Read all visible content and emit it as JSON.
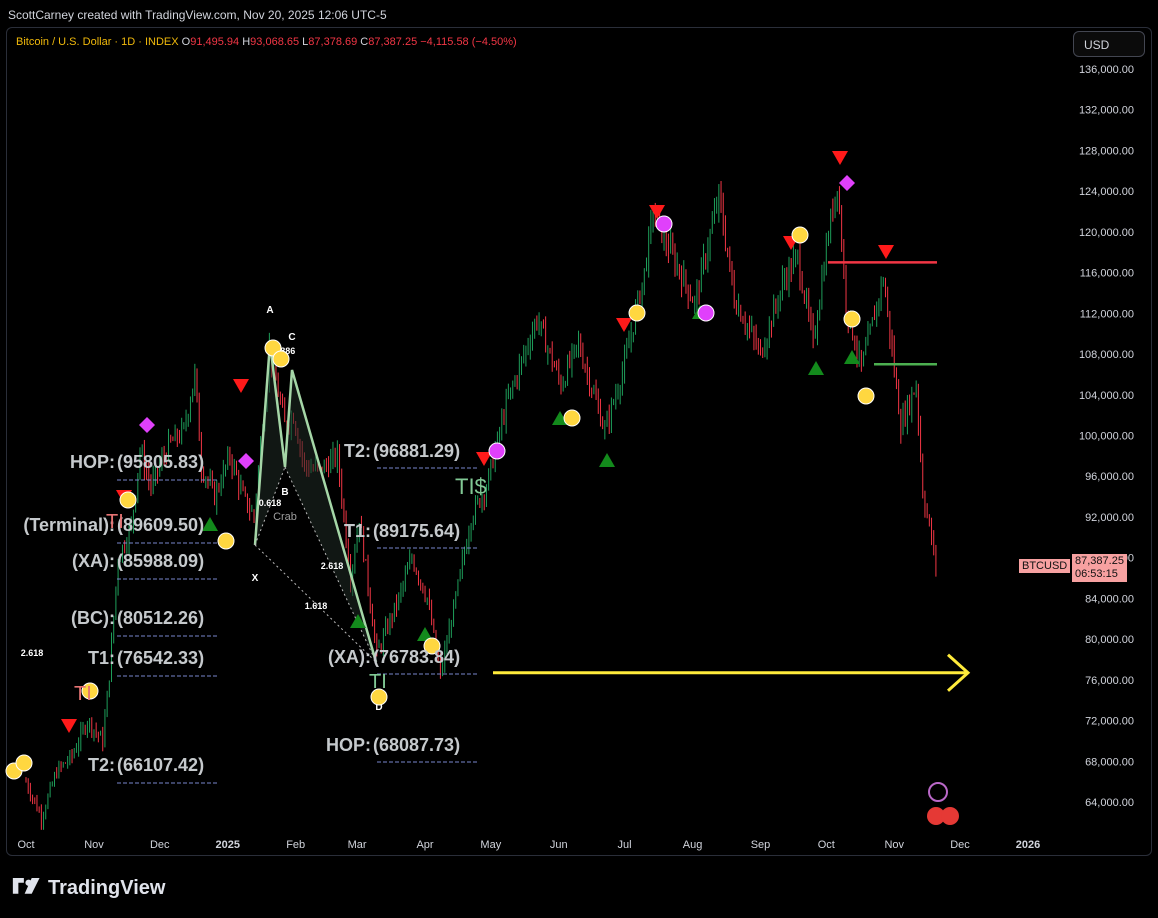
{
  "header": {
    "credit": "ScottCarney created with TradingView.com, Nov 20, 2025 12:06 UTC-5",
    "symbol": "Bitcoin / U.S. Dollar · 1D · INDEX",
    "o_label": "O",
    "o_value": "91,495.94",
    "h_label": "H",
    "h_value": "93,068.65",
    "l_label": "L",
    "l_value": "87,378.69",
    "c_label": "C",
    "c_value": "87,387.25",
    "change": "−4,115.58 (−4.50%)",
    "currency_button": "USD"
  },
  "price_tag": {
    "symbol": "BTCUSD",
    "price": "87,387.25",
    "countdown": "06:53:15"
  },
  "footer": {
    "brand": "TradingView"
  },
  "colors": {
    "up": "#1e9e5a",
    "down": "#f23645",
    "yellow": "#ffd740",
    "magenta": "#e040fb",
    "green_tri": "#138a1c",
    "red_tri": "#ff1a1a"
  },
  "chart_data": {
    "type": "candlestick",
    "title": "Bitcoin / U.S. Dollar · 1D · INDEX",
    "x_tick_labels": [
      "Oct",
      "Nov",
      "Dec",
      "2025",
      "Feb",
      "Mar",
      "Apr",
      "May",
      "Jun",
      "Jul",
      "Aug",
      "Sep",
      "Oct",
      "Nov",
      "Dec",
      "2026"
    ],
    "y_tick_labels": [
      "136,000.00",
      "132,000.00",
      "128,000.00",
      "124,000.00",
      "120,000.00",
      "116,000.00",
      "112,000.00",
      "108,000.00",
      "104,000.00",
      "100,000.00",
      "96,000.00",
      "92,000.00",
      "88,000.00",
      "84,000.00",
      "80,000.00",
      "76,000.00",
      "72,000.00",
      "68,000.00",
      "64,000.00"
    ],
    "ylim": [
      61500,
      138500
    ],
    "close_path": [
      {
        "x": "2024-10-01",
        "y": 66000
      },
      {
        "x": "2024-10-08",
        "y": 62500
      },
      {
        "x": "2024-10-15",
        "y": 67000
      },
      {
        "x": "2024-10-22",
        "y": 68500
      },
      {
        "x": "2024-10-29",
        "y": 72000
      },
      {
        "x": "2024-11-05",
        "y": 70000
      },
      {
        "x": "2024-11-08",
        "y": 76500
      },
      {
        "x": "2024-11-12",
        "y": 88000
      },
      {
        "x": "2024-11-18",
        "y": 91000
      },
      {
        "x": "2024-11-22",
        "y": 98500
      },
      {
        "x": "2024-11-27",
        "y": 95000
      },
      {
        "x": "2024-12-05",
        "y": 99000
      },
      {
        "x": "2024-12-12",
        "y": 100500
      },
      {
        "x": "2024-12-17",
        "y": 106000
      },
      {
        "x": "2024-12-20",
        "y": 97000
      },
      {
        "x": "2024-12-26",
        "y": 94000
      },
      {
        "x": "2025-01-02",
        "y": 98000
      },
      {
        "x": "2025-01-08",
        "y": 94000
      },
      {
        "x": "2025-01-13",
        "y": 92000
      },
      {
        "x": "2025-01-20",
        "y": 108500
      },
      {
        "x": "2025-01-27",
        "y": 101000
      },
      {
        "x": "2025-01-31",
        "y": 102000
      },
      {
        "x": "2025-02-05",
        "y": 97000
      },
      {
        "x": "2025-02-12",
        "y": 96500
      },
      {
        "x": "2025-02-20",
        "y": 98000
      },
      {
        "x": "2025-02-26",
        "y": 86000
      },
      {
        "x": "2025-03-02",
        "y": 92000
      },
      {
        "x": "2025-03-10",
        "y": 78500
      },
      {
        "x": "2025-03-20",
        "y": 84000
      },
      {
        "x": "2025-03-26",
        "y": 88000
      },
      {
        "x": "2025-04-02",
        "y": 84000
      },
      {
        "x": "2025-04-08",
        "y": 76500
      },
      {
        "x": "2025-04-15",
        "y": 84000
      },
      {
        "x": "2025-04-22",
        "y": 92000
      },
      {
        "x": "2025-04-29",
        "y": 95000
      },
      {
        "x": "2025-05-08",
        "y": 103000
      },
      {
        "x": "2025-05-22",
        "y": 111500
      },
      {
        "x": "2025-06-02",
        "y": 105000
      },
      {
        "x": "2025-06-10",
        "y": 109000
      },
      {
        "x": "2025-06-22",
        "y": 100500
      },
      {
        "x": "2025-07-01",
        "y": 107000
      },
      {
        "x": "2025-07-10",
        "y": 116000
      },
      {
        "x": "2025-07-14",
        "y": 122000
      },
      {
        "x": "2025-07-22",
        "y": 118000
      },
      {
        "x": "2025-08-02",
        "y": 113000
      },
      {
        "x": "2025-08-13",
        "y": 123500
      },
      {
        "x": "2025-08-20",
        "y": 113500
      },
      {
        "x": "2025-09-01",
        "y": 108000
      },
      {
        "x": "2025-09-12",
        "y": 115500
      },
      {
        "x": "2025-09-18",
        "y": 117500
      },
      {
        "x": "2025-09-25",
        "y": 109000
      },
      {
        "x": "2025-10-01",
        "y": 118500
      },
      {
        "x": "2025-10-06",
        "y": 125000
      },
      {
        "x": "2025-10-10",
        "y": 113000
      },
      {
        "x": "2025-10-17",
        "y": 106500
      },
      {
        "x": "2025-10-27",
        "y": 115500
      },
      {
        "x": "2025-11-04",
        "y": 101000
      },
      {
        "x": "2025-11-11",
        "y": 105000
      },
      {
        "x": "2025-11-14",
        "y": 94500
      },
      {
        "x": "2025-11-20",
        "y": 87387.25
      }
    ],
    "annotations": {
      "left_projection": [
        {
          "label": "HOP:",
          "value": "(95805.83)",
          "price": 95805.83
        },
        {
          "label": "(Terminal):",
          "value": "(89609.50)",
          "price": 89609.5
        },
        {
          "label": "(XA):",
          "value": "(85988.09)",
          "price": 85988.09
        },
        {
          "label": "(BC):",
          "value": "(80512.26)",
          "price": 80512.26
        },
        {
          "label": "T1:",
          "value": "(76542.33)",
          "price": 76542.33
        },
        {
          "label": "T2:",
          "value": "(66107.42)",
          "price": 66107.42
        }
      ],
      "right_projection": [
        {
          "label": "T2:",
          "value": "(96881.29)",
          "price": 96881.29
        },
        {
          "label": "T1:",
          "value": "(89175.64)",
          "price": 89175.64
        },
        {
          "label": "(XA):",
          "value": "(76783.84)",
          "price": 76783.84
        },
        {
          "label": "HOP:",
          "value": "(68087.73)",
          "price": 68087.73
        }
      ],
      "pattern_name": "Crab",
      "pattern_points": [
        "X",
        "A",
        "B",
        "C",
        "D"
      ],
      "ratios": [
        "0.618",
        "2.618",
        "1.618",
        "0.886",
        "2.618"
      ],
      "tis_label": "TI$",
      "ti_labels": [
        "TI",
        "TI",
        "TI"
      ],
      "resistance_level": 117000,
      "support_level": 107000,
      "arrow_level": 76700
    }
  }
}
